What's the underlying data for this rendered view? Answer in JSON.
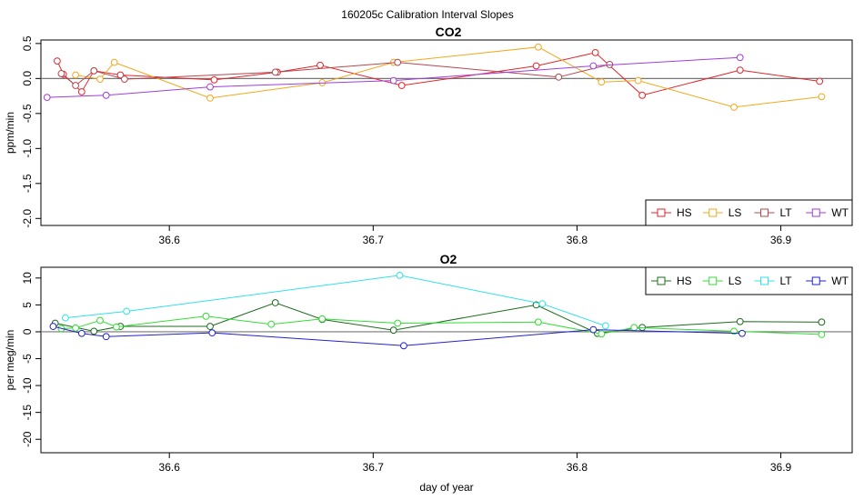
{
  "figure": {
    "title": "160205c   Calibration Interval Slopes"
  },
  "chart_data": [
    {
      "type": "line",
      "title": "CO2",
      "xlabel": "",
      "ylabel": "ppm/min",
      "xlim": [
        36.537,
        36.935
      ],
      "ylim": [
        -2.1,
        0.55
      ],
      "xticks": [
        36.6,
        36.7,
        36.8,
        36.9
      ],
      "yticks": [
        0.5,
        0.0,
        -0.5,
        -1.0,
        -1.5,
        -2.0
      ],
      "xtick_labels": [
        "36.6",
        "36.7",
        "36.8",
        "36.9"
      ],
      "ytick_labels": [
        "0.5",
        "0.0",
        "-0.5",
        "-1.0",
        "-1.5",
        "-2.0"
      ],
      "reference_line": 0,
      "legend_position": "bottom-right",
      "series": [
        {
          "name": "HS",
          "color": "#e0262b",
          "x": [
            36.545,
            36.548,
            36.557,
            36.563,
            36.576,
            36.622,
            36.653,
            36.674,
            36.714,
            36.78,
            36.809,
            36.832,
            36.88,
            36.919
          ],
          "y": [
            0.25,
            0.06,
            -0.19,
            0.11,
            0.05,
            -0.02,
            0.09,
            0.19,
            -0.1,
            0.18,
            0.37,
            -0.24,
            0.12,
            -0.04
          ]
        },
        {
          "name": "LS",
          "color": "#f2a81d",
          "x": [
            36.554,
            36.566,
            36.573,
            36.62,
            36.675,
            36.71,
            36.781,
            36.812,
            36.83,
            36.877,
            36.92
          ],
          "y": [
            0.05,
            -0.01,
            0.23,
            -0.28,
            -0.06,
            0.23,
            0.45,
            -0.05,
            -0.03,
            -0.41,
            -0.26
          ]
        },
        {
          "name": "LT",
          "color": "#b5474d",
          "x": [
            36.547,
            36.554,
            36.563,
            36.578,
            36.652,
            36.712,
            36.791,
            36.816
          ],
          "y": [
            0.07,
            -0.1,
            0.11,
            -0.01,
            0.09,
            0.23,
            0.02,
            0.2
          ]
        },
        {
          "name": "WT",
          "color": "#a23ddc",
          "x": [
            36.54,
            36.569,
            36.62,
            36.71,
            36.808,
            36.88
          ],
          "y": [
            -0.27,
            -0.24,
            -0.12,
            -0.03,
            0.18,
            0.3
          ]
        }
      ]
    },
    {
      "type": "line",
      "title": "O2",
      "xlabel": "day of year",
      "ylabel": "per meg/min",
      "xlim": [
        36.537,
        36.935
      ],
      "ylim": [
        -22.5,
        12.0
      ],
      "xticks": [
        36.6,
        36.7,
        36.8,
        36.9
      ],
      "yticks": [
        10,
        5,
        0,
        -5,
        -10,
        -15,
        -20
      ],
      "xtick_labels": [
        "36.6",
        "36.7",
        "36.8",
        "36.9"
      ],
      "ytick_labels": [
        "10",
        "5",
        "0",
        "-5",
        "-10",
        "-15",
        "-20"
      ],
      "reference_line": 0,
      "legend_position": "top-right",
      "series": [
        {
          "name": "HS",
          "color": "#1d6b1d",
          "x": [
            36.544,
            36.563,
            36.576,
            36.62,
            36.652,
            36.675,
            36.71,
            36.78,
            36.81,
            36.832,
            36.88,
            36.92
          ],
          "y": [
            1.6,
            0.1,
            1.0,
            1.0,
            5.4,
            2.3,
            0.3,
            5.0,
            -0.3,
            0.8,
            1.9,
            1.8
          ]
        },
        {
          "name": "LS",
          "color": "#33dd33",
          "x": [
            36.547,
            36.554,
            36.566,
            36.574,
            36.618,
            36.65,
            36.675,
            36.712,
            36.781,
            36.812,
            36.828,
            36.877,
            36.92
          ],
          "y": [
            0.6,
            0.7,
            2.1,
            0.9,
            2.9,
            1.4,
            2.4,
            1.6,
            1.8,
            -0.4,
            0.8,
            0.1,
            -0.5
          ]
        },
        {
          "name": "LT",
          "color": "#33e0e8",
          "x": [
            36.549,
            36.579,
            36.713,
            36.783,
            36.814
          ],
          "y": [
            2.6,
            3.8,
            10.5,
            5.2,
            1.1
          ]
        },
        {
          "name": "WT",
          "color": "#2222cc",
          "x": [
            36.543,
            36.557,
            36.569,
            36.621,
            36.715,
            36.808,
            36.881
          ],
          "y": [
            1.0,
            -0.3,
            -0.9,
            -0.2,
            -2.6,
            0.4,
            -0.3
          ]
        }
      ]
    }
  ]
}
